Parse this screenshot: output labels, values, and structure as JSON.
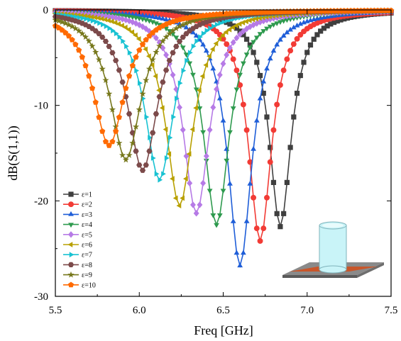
{
  "chart_data": {
    "type": "line",
    "xlabel": "Freq [GHz]",
    "ylabel": "dB(S(1,1))",
    "xlim": [
      5.5,
      7.5
    ],
    "ylim": [
      -30,
      0
    ],
    "xticks": [
      5.5,
      6.0,
      6.5,
      7.0,
      7.5
    ],
    "xtick_labels": [
      "5.5",
      "6.0",
      "6.5",
      "7.0",
      "7.5"
    ],
    "yticks": [
      0,
      -10,
      -20,
      -30
    ],
    "ytick_labels": [
      "0",
      "-10",
      "-20",
      "-30"
    ],
    "grid": false,
    "legend_position": "bottom-left",
    "x_step": 0.02,
    "series": [
      {
        "name": "ε=1",
        "marker": "square",
        "color": "#3f3f3f",
        "resonance_ghz": 6.84,
        "min_db": -22.7
      },
      {
        "name": "ε=2",
        "marker": "circle",
        "color": "#f23b35",
        "resonance_ghz": 6.72,
        "min_db": -24.2
      },
      {
        "name": "ε=3",
        "marker": "triangle-up",
        "color": "#1f5ed8",
        "resonance_ghz": 6.6,
        "min_db": -26.8
      },
      {
        "name": "ε=4",
        "marker": "triangle-down",
        "color": "#2e9a4e",
        "resonance_ghz": 6.46,
        "min_db": -22.5
      },
      {
        "name": "ε=5",
        "marker": "diamond",
        "color": "#b67ae6",
        "resonance_ghz": 6.34,
        "min_db": -21.3
      },
      {
        "name": "ε=6",
        "marker": "triangle-left",
        "color": "#b8a000",
        "resonance_ghz": 6.24,
        "min_db": -20.5
      },
      {
        "name": "ε=7",
        "marker": "triangle-right",
        "color": "#19c2d2",
        "resonance_ghz": 6.12,
        "min_db": -17.8
      },
      {
        "name": "ε=8",
        "marker": "hexagon",
        "color": "#7c4a4a",
        "resonance_ghz": 6.02,
        "min_db": -16.8
      },
      {
        "name": "ε=9",
        "marker": "star",
        "color": "#77781c",
        "resonance_ghz": 5.92,
        "min_db": -15.7
      },
      {
        "name": "ε=10",
        "marker": "pentagon",
        "color": "#ff6a00",
        "resonance_ghz": 5.82,
        "min_db": -14.2
      }
    ]
  },
  "inset": {
    "description_icon": "antenna-substrate-with-cylindrical-resonator-icon",
    "substrate_color": "#8a8a8a",
    "strip_color": "#c8562a",
    "cylinder_color": "#c9f4f8"
  }
}
